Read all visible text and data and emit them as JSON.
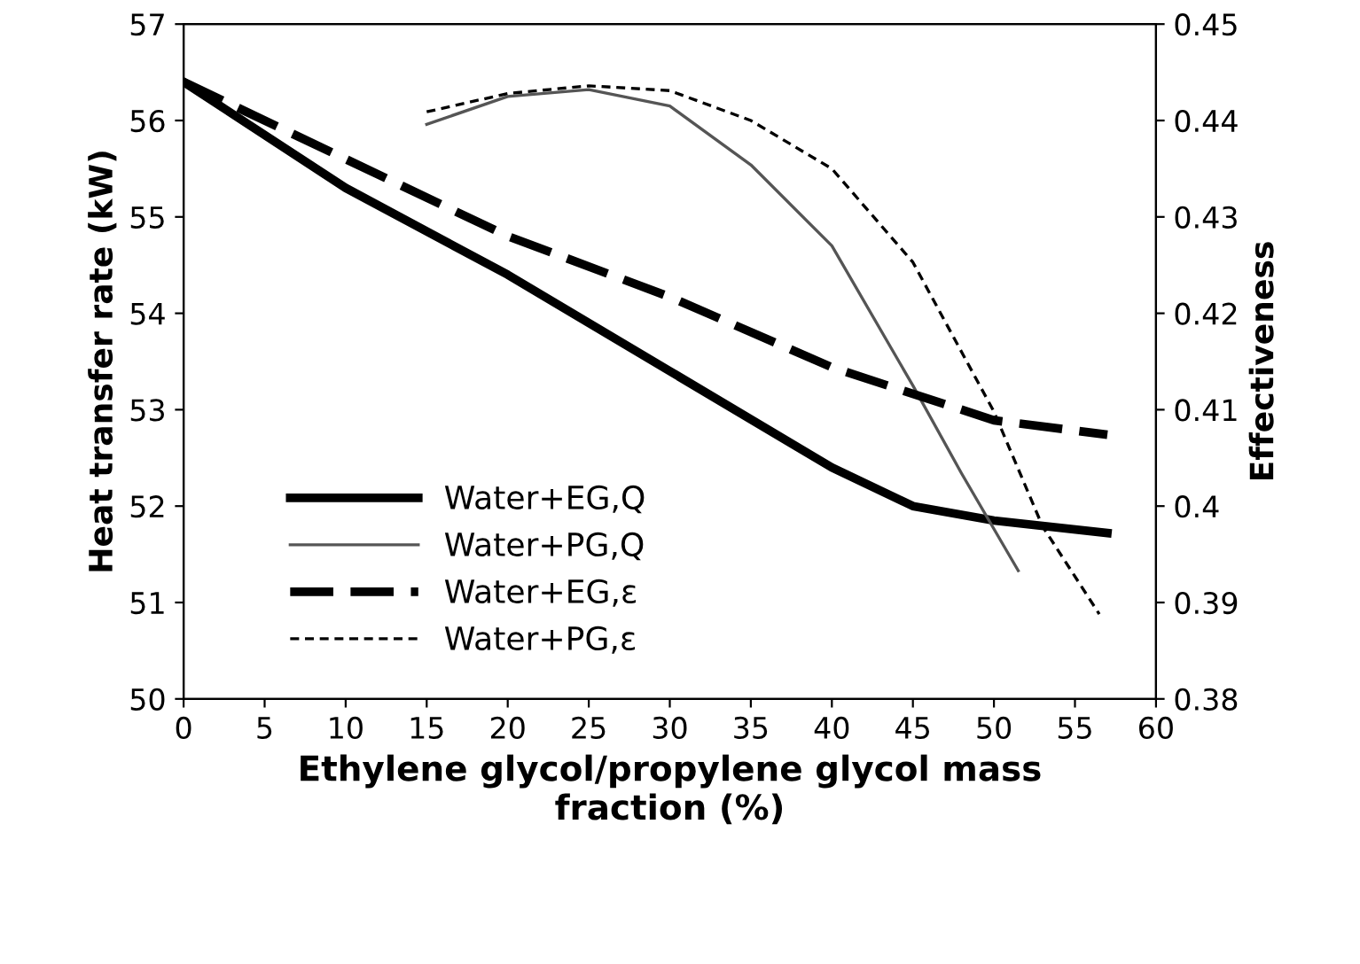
{
  "chart_data": {
    "type": "line",
    "xlabel": "Ethylene glycol/propylene glycol mass\nfraction (%)",
    "ylabel": "Heat transfer rate (kW)",
    "y2label": "Effectiveness",
    "xlim": [
      0,
      60
    ],
    "xticks": [
      0,
      5,
      10,
      15,
      20,
      25,
      30,
      35,
      40,
      45,
      50,
      55,
      60
    ],
    "ylim": [
      50,
      57
    ],
    "yticks": [
      50,
      51,
      52,
      53,
      54,
      55,
      56,
      57
    ],
    "y2lim": [
      0.38,
      0.45
    ],
    "y2ticks": [
      {
        "value": 0.38,
        "label": "0.38"
      },
      {
        "value": 0.39,
        "label": "0.39"
      },
      {
        "value": 0.4,
        "label": "0.4"
      },
      {
        "value": 0.41,
        "label": "0.41"
      },
      {
        "value": 0.42,
        "label": "0.42"
      },
      {
        "value": 0.43,
        "label": "0.43"
      },
      {
        "value": 0.44,
        "label": "0.44"
      },
      {
        "value": 0.45,
        "label": "0.45"
      }
    ],
    "grid": false,
    "legend": "bottom left",
    "marker": "none",
    "series": [
      {
        "name": "Water+EG,Q",
        "color": "#000000",
        "line_style": "solid",
        "x": [
          0,
          10,
          20,
          30,
          40,
          45,
          50,
          57
        ],
        "values": [
          56.4,
          55.3,
          54.4,
          53.4,
          52.4,
          52.0,
          51.85,
          51.72
        ]
      },
      {
        "name": "Water+PG,Q",
        "color": "#555555",
        "line_style": "solid",
        "x": [
          15,
          20,
          25,
          30,
          35,
          40,
          45,
          48,
          51.5
        ],
        "values": [
          55.96,
          56.25,
          56.32,
          56.15,
          55.54,
          54.7,
          53.25,
          52.34,
          51.33
        ]
      },
      {
        "name": "Water+EG,ε",
        "color": "#000000",
        "line_style": "dashed",
        "axis": "y2",
        "x": [
          0,
          10,
          20,
          30,
          40,
          50,
          57
        ],
        "values": [
          0.444,
          0.436,
          0.428,
          0.4217,
          0.4144,
          0.4089,
          0.4074
        ]
      },
      {
        "name": "Water+PG,ε",
        "color": "#000000",
        "line_style": "dotted",
        "axis": "y2",
        "x": [
          15,
          20,
          25,
          30,
          35,
          40,
          45,
          50,
          53,
          56.5
        ],
        "values": [
          0.4409,
          0.4428,
          0.4436,
          0.4431,
          0.44,
          0.435,
          0.4253,
          0.4098,
          0.3979,
          0.3888
        ]
      }
    ]
  }
}
